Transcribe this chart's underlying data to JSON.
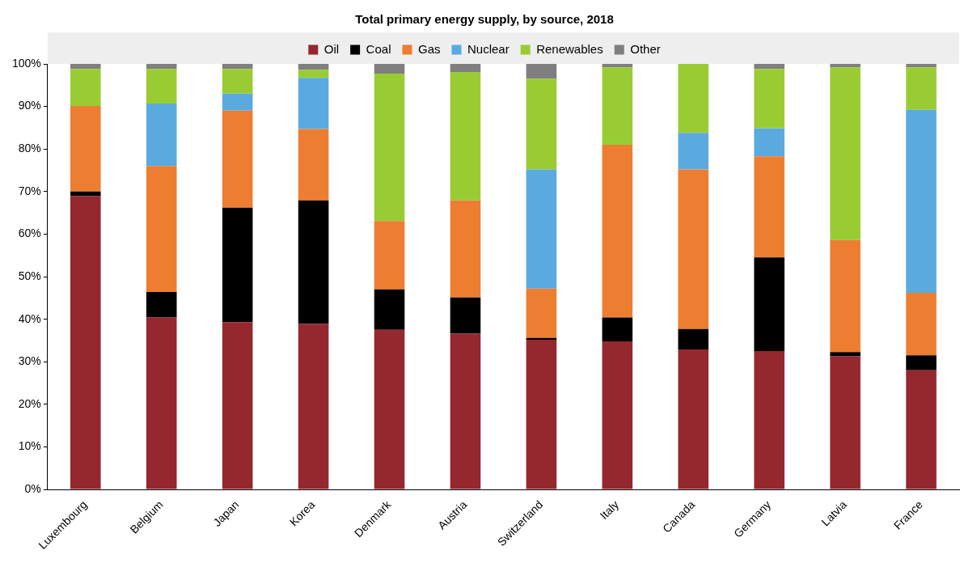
{
  "chart_data": {
    "type": "bar",
    "title": "Total primary energy supply, by source, 2018",
    "stacked": true,
    "legend": "top",
    "grid": false,
    "categories": [
      "Luxembourg",
      "Belgium",
      "Japan",
      "Korea",
      "Denmark",
      "Austria",
      "Switzerland",
      "Italy",
      "Canada",
      "Germany",
      "Latvia",
      "France"
    ],
    "ylim": [
      0,
      100
    ],
    "yticks": [
      {
        "value": 0,
        "label": "0%"
      },
      {
        "value": 10,
        "label": "10%"
      },
      {
        "value": 20,
        "label": "20%"
      },
      {
        "value": 30,
        "label": "30%"
      },
      {
        "value": 40,
        "label": "40%"
      },
      {
        "value": 50,
        "label": "50%"
      },
      {
        "value": 60,
        "label": "60%"
      },
      {
        "value": 70,
        "label": "70%"
      },
      {
        "value": 80,
        "label": "80%"
      },
      {
        "value": 90,
        "label": "90%"
      },
      {
        "value": 100,
        "label": "100%"
      }
    ],
    "series": [
      {
        "name": "Oil",
        "color": "#95272e",
        "values": [
          68.9,
          40.4,
          39.3,
          38.9,
          37.5,
          36.6,
          35.2,
          34.8,
          32.9,
          32.5,
          31.3,
          28.0
        ]
      },
      {
        "name": "Coal",
        "color": "#000000",
        "values": [
          1.1,
          6.0,
          26.9,
          29.0,
          9.5,
          8.5,
          0.4,
          5.6,
          4.8,
          22.0,
          1.0,
          3.5
        ]
      },
      {
        "name": "Gas",
        "color": "#ed7d31",
        "values": [
          20.1,
          29.6,
          22.8,
          16.8,
          16.1,
          22.8,
          11.6,
          40.6,
          37.5,
          23.8,
          26.3,
          14.7
        ]
      },
      {
        "name": "Nuclear",
        "color": "#5aaadf",
        "values": [
          0,
          14.7,
          4.0,
          12.0,
          0,
          0,
          28.0,
          0,
          8.6,
          6.6,
          0,
          43.0
        ]
      },
      {
        "name": "Renewables",
        "color": "#99cc33",
        "values": [
          8.7,
          8.1,
          5.8,
          1.9,
          34.6,
          30.2,
          21.3,
          18.2,
          16.2,
          13.9,
          40.6,
          10.0
        ]
      },
      {
        "name": "Other",
        "color": "#7f7f7f",
        "values": [
          1.2,
          1.2,
          1.2,
          1.4,
          2.3,
          1.9,
          3.5,
          0.8,
          0,
          1.2,
          0.8,
          0.8
        ]
      }
    ]
  }
}
